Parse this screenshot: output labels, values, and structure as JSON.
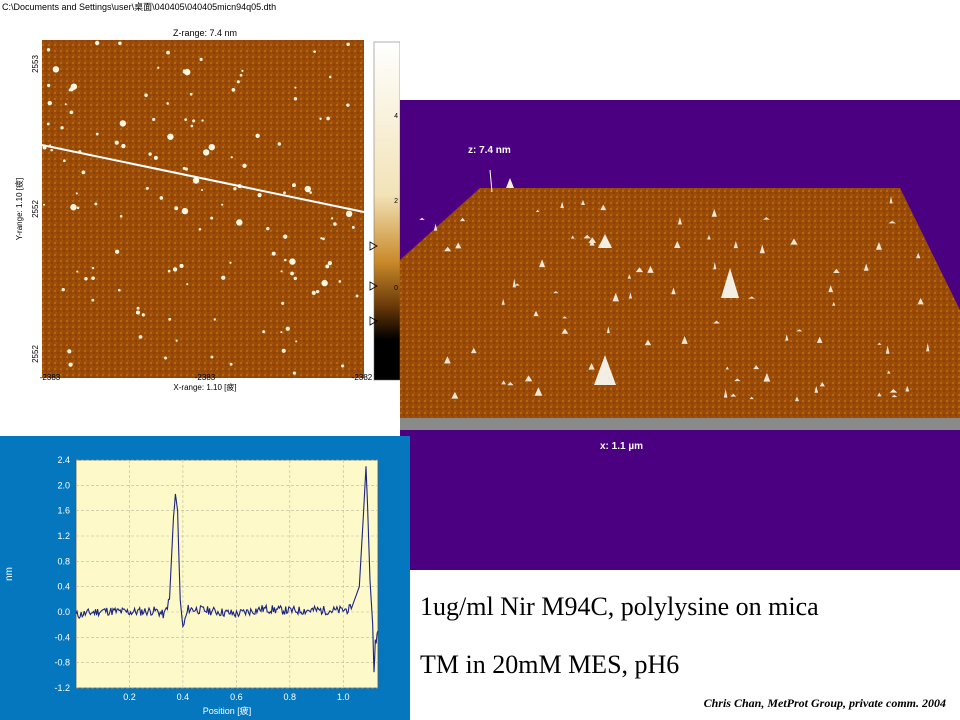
{
  "path": "C:\\Documents and Settings\\user\\桌面\\040405\\040405micn94q05.dth",
  "afm": {
    "z_range": "Z-range: 7.4 nm",
    "x_range": "X-range: 1.10 [疲]",
    "y_range": "Y-range: 1.10 [疲]",
    "x_ticks": [
      "-2383",
      "-2383",
      "-2382"
    ],
    "y_ticks": [
      "2553",
      "2552",
      "2552"
    ],
    "colorbar_ticks": [
      "4",
      "2",
      "0"
    ]
  },
  "surface": {
    "z_label": "z: 7.4 nm",
    "x_label": "x: 1.1 µm"
  },
  "profile": {
    "ylabel": "nm",
    "xlabel": "Position [疲]",
    "y_ticks": [
      "2.4",
      "2.0",
      "1.6",
      "1.2",
      "0.8",
      "0.4",
      "0.0",
      "-0.4",
      "-0.8",
      "-1.2"
    ],
    "x_ticks": [
      "0.2",
      "0.4",
      "0.6",
      "0.8",
      "1.0"
    ]
  },
  "chart_data": {
    "type": "line",
    "xlabel": "Position [疲]",
    "ylabel": "nm",
    "xlim": [
      0,
      1.13
    ],
    "ylim": [
      -1.2,
      2.4
    ],
    "grid": true,
    "series": [
      {
        "values": [
          [
            0.0,
            -0.05
          ],
          [
            0.1,
            0.02
          ],
          [
            0.2,
            0.0
          ],
          [
            0.3,
            0.02
          ],
          [
            0.33,
            -0.05
          ],
          [
            0.35,
            0.2
          ],
          [
            0.365,
            1.5
          ],
          [
            0.372,
            1.85
          ],
          [
            0.38,
            1.6
          ],
          [
            0.39,
            0.2
          ],
          [
            0.4,
            -0.25
          ],
          [
            0.42,
            0.05
          ],
          [
            0.5,
            0.02
          ],
          [
            0.6,
            -0.03
          ],
          [
            0.7,
            0.05
          ],
          [
            0.8,
            0.02
          ],
          [
            0.9,
            0.03
          ],
          [
            0.98,
            0.02
          ],
          [
            1.03,
            0.05
          ],
          [
            1.06,
            0.4
          ],
          [
            1.075,
            1.5
          ],
          [
            1.085,
            2.3
          ],
          [
            1.09,
            1.8
          ],
          [
            1.1,
            0.5
          ],
          [
            1.11,
            -0.2
          ],
          [
            1.115,
            -0.95
          ],
          [
            1.12,
            -0.5
          ],
          [
            1.13,
            -0.3
          ]
        ]
      }
    ]
  },
  "captions": {
    "line1": "1ug/ml Nir M94C, polylysine on mica",
    "line2": "TM in 20mM MES, pH6",
    "credit": "Chris Chan, MetProt Group, private comm. 2004"
  },
  "colors": {
    "purple_bg": "#4b0082",
    "profile_bg": "#0577bf",
    "plot_bg": "#fdf9c9",
    "afm_brown": "#9a4a07",
    "trace": "#1c2480"
  }
}
